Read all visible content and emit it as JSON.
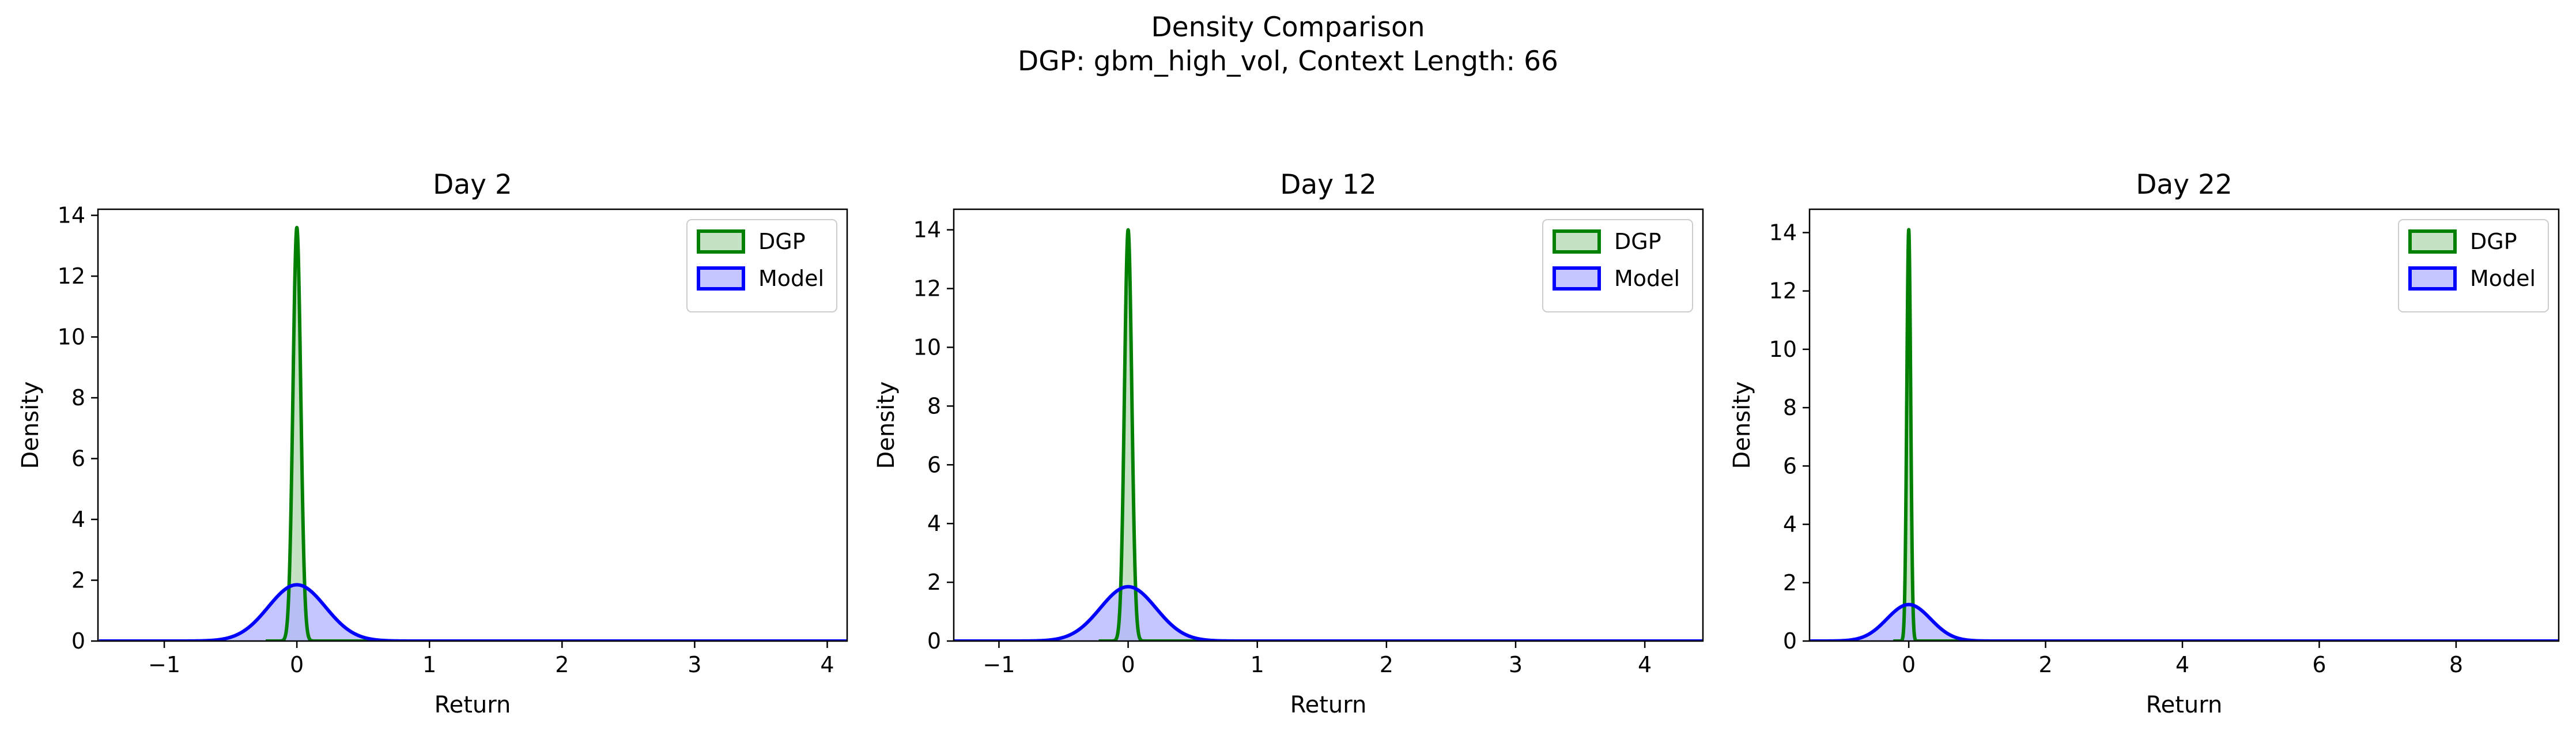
{
  "title": "Density Comparison",
  "subtitle": "DGP: gbm_high_vol, Context Length: 66",
  "colors": {
    "dgp_line": "#008000",
    "dgp_fill": "#b2d8b2",
    "model_line": "#0000ff",
    "model_fill": "#b2b2ff",
    "overlap_line": "#1e4c6e"
  },
  "chart_data": [
    {
      "type": "area",
      "title": "Day 2",
      "xlabel": "Return",
      "ylabel": "Density",
      "xlim": [
        -1.5,
        4.15
      ],
      "ylim": [
        0,
        14.2
      ],
      "xticks": [
        -1,
        0,
        1,
        2,
        3,
        4
      ],
      "xtick_labels": [
        "−1",
        "0",
        "1",
        "2",
        "3",
        "4"
      ],
      "yticks": [
        0,
        2,
        4,
        6,
        8,
        10,
        12,
        14
      ],
      "ytick_labels": [
        "0",
        "2",
        "4",
        "6",
        "8",
        "10",
        "12",
        "14"
      ],
      "grid": false,
      "legend": "upper right",
      "series": [
        {
          "name": "DGP",
          "distribution": "normal",
          "mean": 0.0,
          "peak_density": 13.6
        },
        {
          "name": "Model",
          "distribution": "normal",
          "mean": 0.0,
          "peak_density": 1.85
        }
      ]
    },
    {
      "type": "area",
      "title": "Day 12",
      "xlabel": "Return",
      "ylabel": "Density",
      "xlim": [
        -1.35,
        4.45
      ],
      "ylim": [
        0,
        14.7
      ],
      "xticks": [
        -1,
        0,
        1,
        2,
        3,
        4
      ],
      "xtick_labels": [
        "−1",
        "0",
        "1",
        "2",
        "3",
        "4"
      ],
      "yticks": [
        0,
        2,
        4,
        6,
        8,
        10,
        12,
        14
      ],
      "ytick_labels": [
        "0",
        "2",
        "4",
        "6",
        "8",
        "10",
        "12",
        "14"
      ],
      "grid": false,
      "legend": "upper right",
      "series": [
        {
          "name": "DGP",
          "distribution": "normal",
          "mean": 0.0,
          "peak_density": 14.0
        },
        {
          "name": "Model",
          "distribution": "normal",
          "mean": 0.0,
          "peak_density": 1.85
        }
      ]
    },
    {
      "type": "area",
      "title": "Day 22",
      "xlabel": "Return",
      "ylabel": "Density",
      "xlim": [
        -1.45,
        9.5
      ],
      "ylim": [
        0,
        14.8
      ],
      "xticks": [
        0,
        2,
        4,
        6,
        8
      ],
      "xtick_labels": [
        "0",
        "2",
        "4",
        "6",
        "8"
      ],
      "yticks": [
        0,
        2,
        4,
        6,
        8,
        10,
        12,
        14
      ],
      "ytick_labels": [
        "0",
        "2",
        "4",
        "6",
        "8",
        "10",
        "12",
        "14"
      ],
      "grid": false,
      "legend": "upper right",
      "series": [
        {
          "name": "DGP",
          "distribution": "normal",
          "mean": 0.0,
          "peak_density": 14.1
        },
        {
          "name": "Model",
          "distribution": "normal",
          "mean": 0.0,
          "peak_density": 1.25
        }
      ]
    }
  ]
}
